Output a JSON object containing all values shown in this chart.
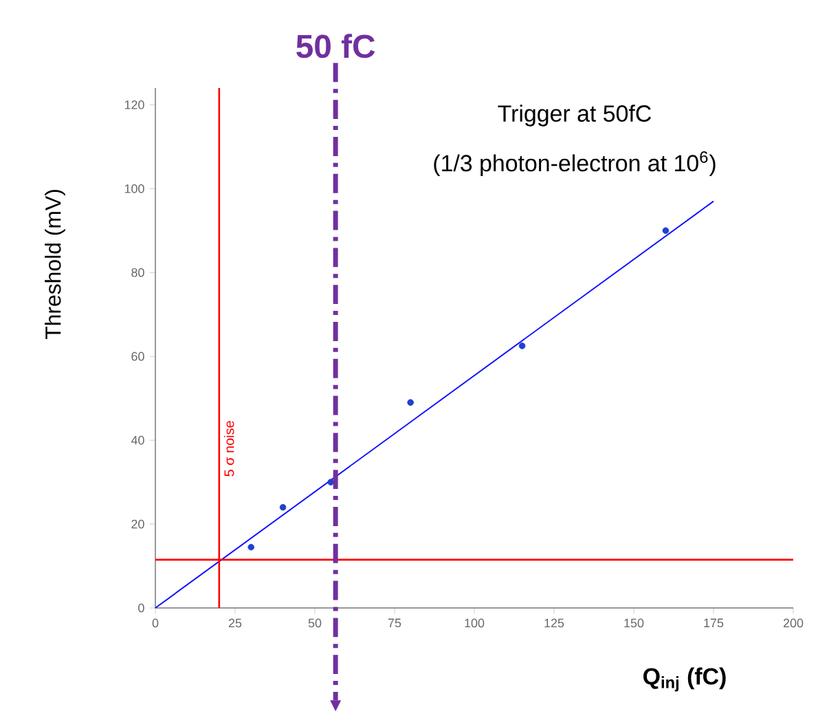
{
  "chart_data": {
    "type": "scatter",
    "xlabel": "**Q$_{inj}$ (fC)**",
    "ylabel": "Threshold (mV)",
    "annotations": [
      "Trigger at 50fC",
      "(1/3 photon-electron at 10$^{6}$)"
    ],
    "xlim": [
      0,
      200
    ],
    "ylim": [
      0,
      124
    ],
    "xticks": [
      0,
      25,
      50,
      75,
      100,
      125,
      150,
      175,
      200
    ],
    "yticks": [
      0,
      20,
      40,
      60,
      80,
      100,
      120
    ],
    "series": [
      {
        "color": "#2040d0",
        "marker": "circle",
        "x": [
          30,
          40,
          55,
          80,
          115,
          160
        ],
        "values": [
          14.5,
          24,
          30,
          49,
          62.5,
          90
        ]
      },
      {
        "type": "line",
        "color": "#1010ff",
        "line_style": "solid",
        "x": [
          0,
          175
        ],
        "values": [
          0,
          97
        ]
      }
    ],
    "ref_lines": [
      {
        "axis": "x",
        "value": 20,
        "label": "5 σ noise",
        "color": "#ff0000",
        "line_style": "solid"
      },
      {
        "axis": "y",
        "value": 11.5,
        "color": "#ff0000",
        "line_style": "solid"
      },
      {
        "axis": "x",
        "value": 56.5,
        "label": "50 fC",
        "color": "#7030a0",
        "line_style": "dashed"
      }
    ],
    "grid": false
  }
}
